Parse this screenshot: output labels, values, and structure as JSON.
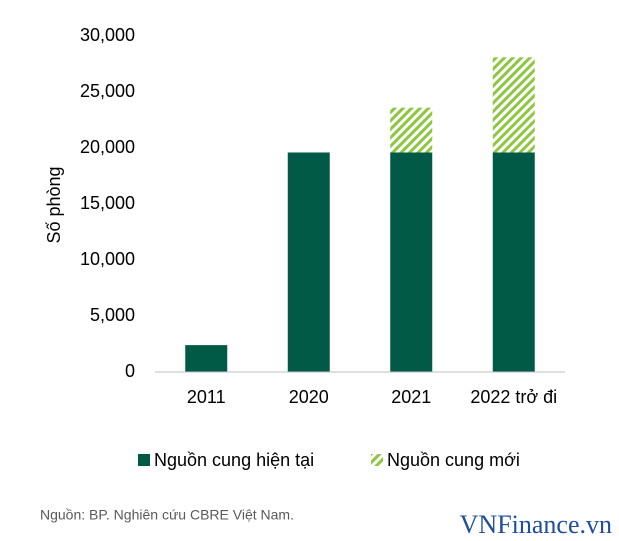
{
  "chart_data": {
    "type": "bar",
    "stacked": true,
    "y_label": "Số phòng",
    "categories": [
      "2011",
      "2020",
      "2021",
      "2022 trở đi"
    ],
    "series": [
      {
        "name": "Nguồn cung hiện tại",
        "color": "#005a46",
        "pattern": "solid",
        "values": [
          2400,
          19600,
          19600,
          19600
        ]
      },
      {
        "name": "Nguồn cung mới",
        "color": "#8dc63f",
        "pattern": "hatch",
        "values": [
          null,
          null,
          4000,
          8500
        ]
      }
    ],
    "ylim": [
      0,
      30000
    ],
    "yticks": [
      0,
      {
        "value": 5000,
        "label": "5,000"
      },
      {
        "value": 10000,
        "label": "10,000"
      },
      {
        "value": 15000,
        "label": "15,000"
      },
      {
        "value": 20000,
        "label": "20,000"
      },
      {
        "value": 25000,
        "label": "25,000"
      },
      {
        "value": 30000,
        "label": "30,000"
      }
    ],
    "grid": false,
    "legend": "bottom"
  },
  "source": "Nguồn: BP. Nghiên cứu CBRE Việt Nam.",
  "watermark": "VNFinance.vn"
}
